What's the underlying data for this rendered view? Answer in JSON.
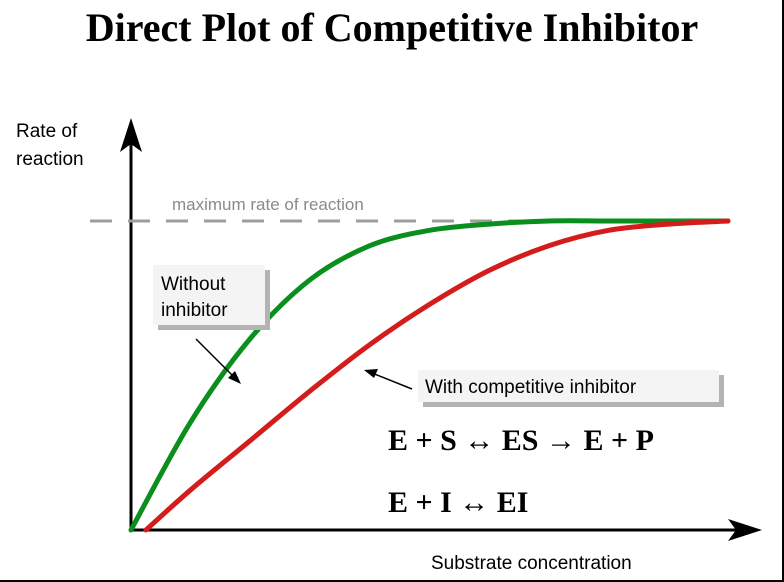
{
  "title": "Direct Plot of Competitive Inhibitor",
  "colors": {
    "without_inhibitor": "#0a8f1f",
    "with_inhibitor": "#d41c1c",
    "vmax_line": "#9e9e9e",
    "axes": "#000000",
    "label_box_fill": "#f4f4f4",
    "label_box_shadow": "#b3b3b3"
  },
  "chart_data": {
    "type": "line",
    "ylabel": "Rate of reaction",
    "xlabel": "Substrate concentration",
    "reference_line": {
      "label": "maximum rate of reaction",
      "style": "dashed",
      "y": 1.0
    },
    "xlim": [
      0,
      1
    ],
    "ylim": [
      0,
      1.1
    ],
    "grid": false,
    "series": [
      {
        "name": "Without inhibitor",
        "x": [
          0,
          0.1,
          0.2,
          0.3,
          0.4,
          0.5,
          0.6,
          0.7,
          0.8,
          0.9,
          1.0
        ],
        "y": [
          0,
          0.35,
          0.62,
          0.81,
          0.92,
          0.97,
          0.99,
          1.0,
          1.0,
          1.0,
          1.0
        ]
      },
      {
        "name": "With competitive inhibitor",
        "x": [
          0.025,
          0.1,
          0.2,
          0.3,
          0.4,
          0.5,
          0.6,
          0.7,
          0.8,
          0.9,
          1.0
        ],
        "y": [
          0,
          0.13,
          0.29,
          0.45,
          0.6,
          0.73,
          0.84,
          0.92,
          0.97,
          0.99,
          1.0
        ]
      }
    ]
  },
  "labels": {
    "without_inhibitor_line1": "Without",
    "without_inhibitor_line2": "inhibitor",
    "with_inhibitor": "With competitive inhibitor"
  },
  "equations": {
    "line1": "E + S ↔ ES → E + P",
    "line2": "E + I ↔ EI"
  }
}
